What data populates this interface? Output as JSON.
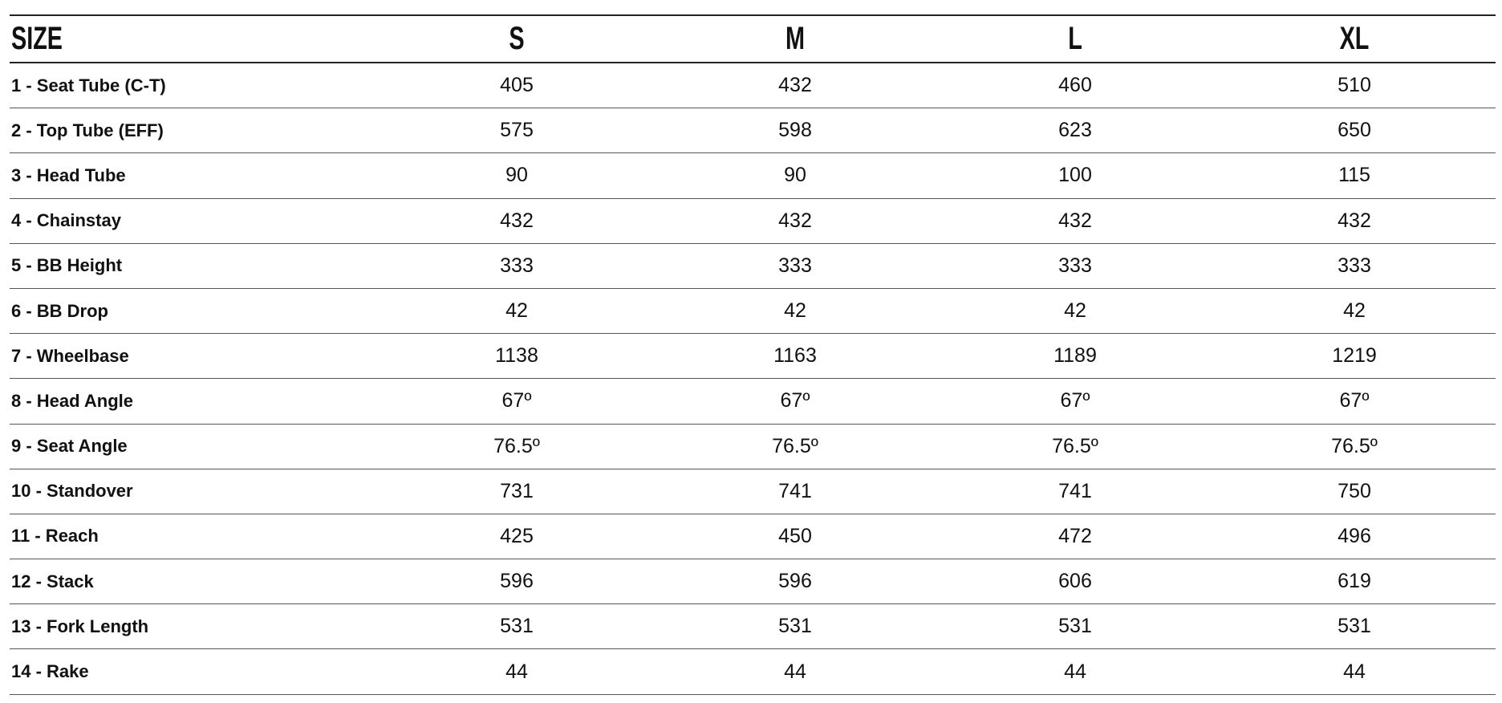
{
  "table": {
    "header": [
      "SIZE",
      "S",
      "M",
      "L",
      "XL"
    ],
    "rows": [
      [
        "1 - Seat Tube (C-T)",
        405,
        432,
        460,
        510
      ],
      [
        "2 - Top Tube (EFF)",
        575,
        598,
        623,
        650
      ],
      [
        "3 - Head Tube",
        90,
        90,
        100,
        115
      ],
      [
        "4 - Chainstay",
        432,
        432,
        432,
        432
      ],
      [
        "5 - BB Height",
        333,
        333,
        333,
        333
      ],
      [
        "6 - BB Drop",
        42,
        42,
        42,
        42
      ],
      [
        "7 - Wheelbase",
        1138,
        1163,
        1189,
        1219
      ],
      [
        "8 - Head Angle",
        "67º",
        "67º",
        "67º",
        "67º"
      ],
      [
        "9 - Seat Angle",
        "76.5º",
        "76.5º",
        "76.5º",
        "76.5º"
      ],
      [
        "10 - Standover",
        731,
        741,
        741,
        750
      ],
      [
        "11 - Reach",
        425,
        450,
        472,
        496
      ],
      [
        "12 - Stack",
        596,
        596,
        606,
        619
      ],
      [
        "13 - Fork Length",
        531,
        531,
        531,
        531
      ],
      [
        "14 - Rake",
        44,
        44,
        44,
        44
      ]
    ]
  }
}
